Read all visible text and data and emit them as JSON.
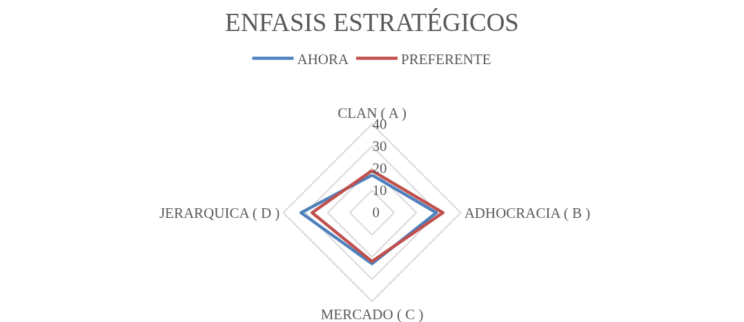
{
  "chart_data": {
    "type": "radar",
    "title": "ENFASIS ESTRATÉGICOS",
    "categories": [
      "CLAN ( A )",
      "ADHOCRACIA ( B )",
      "MERCADO ( C )",
      "JERARQUICA ( D )"
    ],
    "series": [
      {
        "name": "AHORA",
        "color": "#4f81bd",
        "values": [
          17,
          29,
          23,
          32
        ]
      },
      {
        "name": "PREFERENTE",
        "color": "#c0504d",
        "values": [
          19,
          32,
          22,
          27
        ]
      }
    ],
    "ylim": [
      0,
      40
    ],
    "yticks": [
      0,
      10,
      20,
      30,
      40
    ],
    "grid": true,
    "legend": "top",
    "marker": "none",
    "line_style": "solid"
  }
}
